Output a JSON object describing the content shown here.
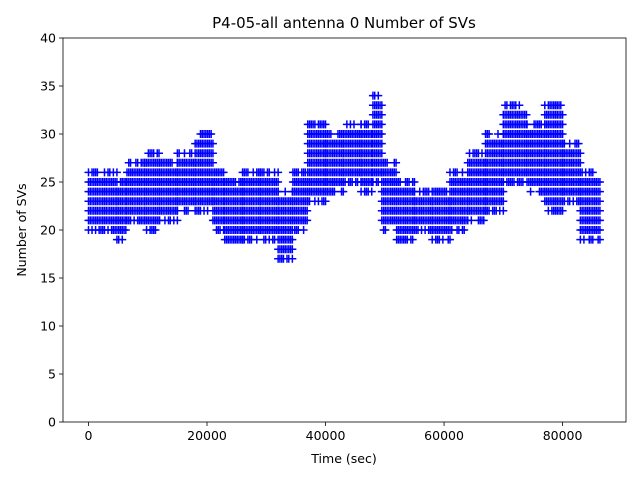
{
  "chart_data": {
    "type": "scatter",
    "title": "P4-05-all antenna 0 Number of SVs",
    "xlabel": "Time (sec)",
    "ylabel": "Number of SVs",
    "xlim": [
      -4300,
      90700
    ],
    "ylim": [
      0,
      40
    ],
    "x_ticks": [
      0,
      20000,
      40000,
      60000,
      80000
    ],
    "y_ticks": [
      0,
      5,
      10,
      15,
      20,
      25,
      30,
      35,
      40
    ],
    "grid": false,
    "legend": "none",
    "marker": "+",
    "color": "#0000ff",
    "x_sample_step": 300,
    "series": [
      {
        "segments": [
          {
            "x_start": 0,
            "x_end": 4800,
            "y_min": 20,
            "y_max": 26
          },
          {
            "x_start": 4800,
            "x_end": 6500,
            "y_min": 19,
            "y_max": 25
          },
          {
            "x_start": 6500,
            "x_end": 9500,
            "y_min": 21,
            "y_max": 27
          },
          {
            "x_start": 9500,
            "x_end": 12000,
            "y_min": 20,
            "y_max": 28
          },
          {
            "x_start": 12000,
            "x_end": 15000,
            "y_min": 21,
            "y_max": 27
          },
          {
            "x_start": 15000,
            "x_end": 18000,
            "y_min": 22,
            "y_max": 28
          },
          {
            "x_start": 18000,
            "x_end": 21000,
            "y_min": 22,
            "y_max": 30
          },
          {
            "x_start": 21000,
            "x_end": 23000,
            "y_min": 20,
            "y_max": 26
          },
          {
            "x_start": 23000,
            "x_end": 26000,
            "y_min": 19,
            "y_max": 25
          },
          {
            "x_start": 26000,
            "x_end": 29000,
            "y_min": 19,
            "y_max": 26
          },
          {
            "x_start": 29000,
            "x_end": 32000,
            "y_min": 19,
            "y_max": 26
          },
          {
            "x_start": 32000,
            "x_end": 34500,
            "y_min": 17,
            "y_max": 24
          },
          {
            "x_start": 34500,
            "x_end": 37000,
            "y_min": 20,
            "y_max": 26
          },
          {
            "x_start": 37000,
            "x_end": 40000,
            "y_min": 23,
            "y_max": 31
          },
          {
            "x_start": 40000,
            "x_end": 43000,
            "y_min": 24,
            "y_max": 30
          },
          {
            "x_start": 43000,
            "x_end": 46000,
            "y_min": 25,
            "y_max": 31
          },
          {
            "x_start": 46000,
            "x_end": 48000,
            "y_min": 24,
            "y_max": 31
          },
          {
            "x_start": 48000,
            "x_end": 49500,
            "y_min": 25,
            "y_max": 34
          },
          {
            "x_start": 49500,
            "x_end": 52000,
            "y_min": 20,
            "y_max": 27
          },
          {
            "x_start": 52000,
            "x_end": 55000,
            "y_min": 19,
            "y_max": 25
          },
          {
            "x_start": 55000,
            "x_end": 58000,
            "y_min": 20,
            "y_max": 24
          },
          {
            "x_start": 58000,
            "x_end": 61000,
            "y_min": 19,
            "y_max": 24
          },
          {
            "x_start": 61000,
            "x_end": 64000,
            "y_min": 20,
            "y_max": 26
          },
          {
            "x_start": 64000,
            "x_end": 67000,
            "y_min": 21,
            "y_max": 28
          },
          {
            "x_start": 67000,
            "x_end": 70000,
            "y_min": 22,
            "y_max": 30
          },
          {
            "x_start": 70000,
            "x_end": 74000,
            "y_min": 25,
            "y_max": 33
          },
          {
            "x_start": 74000,
            "x_end": 77000,
            "y_min": 24,
            "y_max": 31
          },
          {
            "x_start": 77000,
            "x_end": 80000,
            "y_min": 22,
            "y_max": 33
          },
          {
            "x_start": 80000,
            "x_end": 83000,
            "y_min": 23,
            "y_max": 29
          },
          {
            "x_start": 83000,
            "x_end": 86500,
            "y_min": 19,
            "y_max": 26
          }
        ]
      }
    ]
  }
}
